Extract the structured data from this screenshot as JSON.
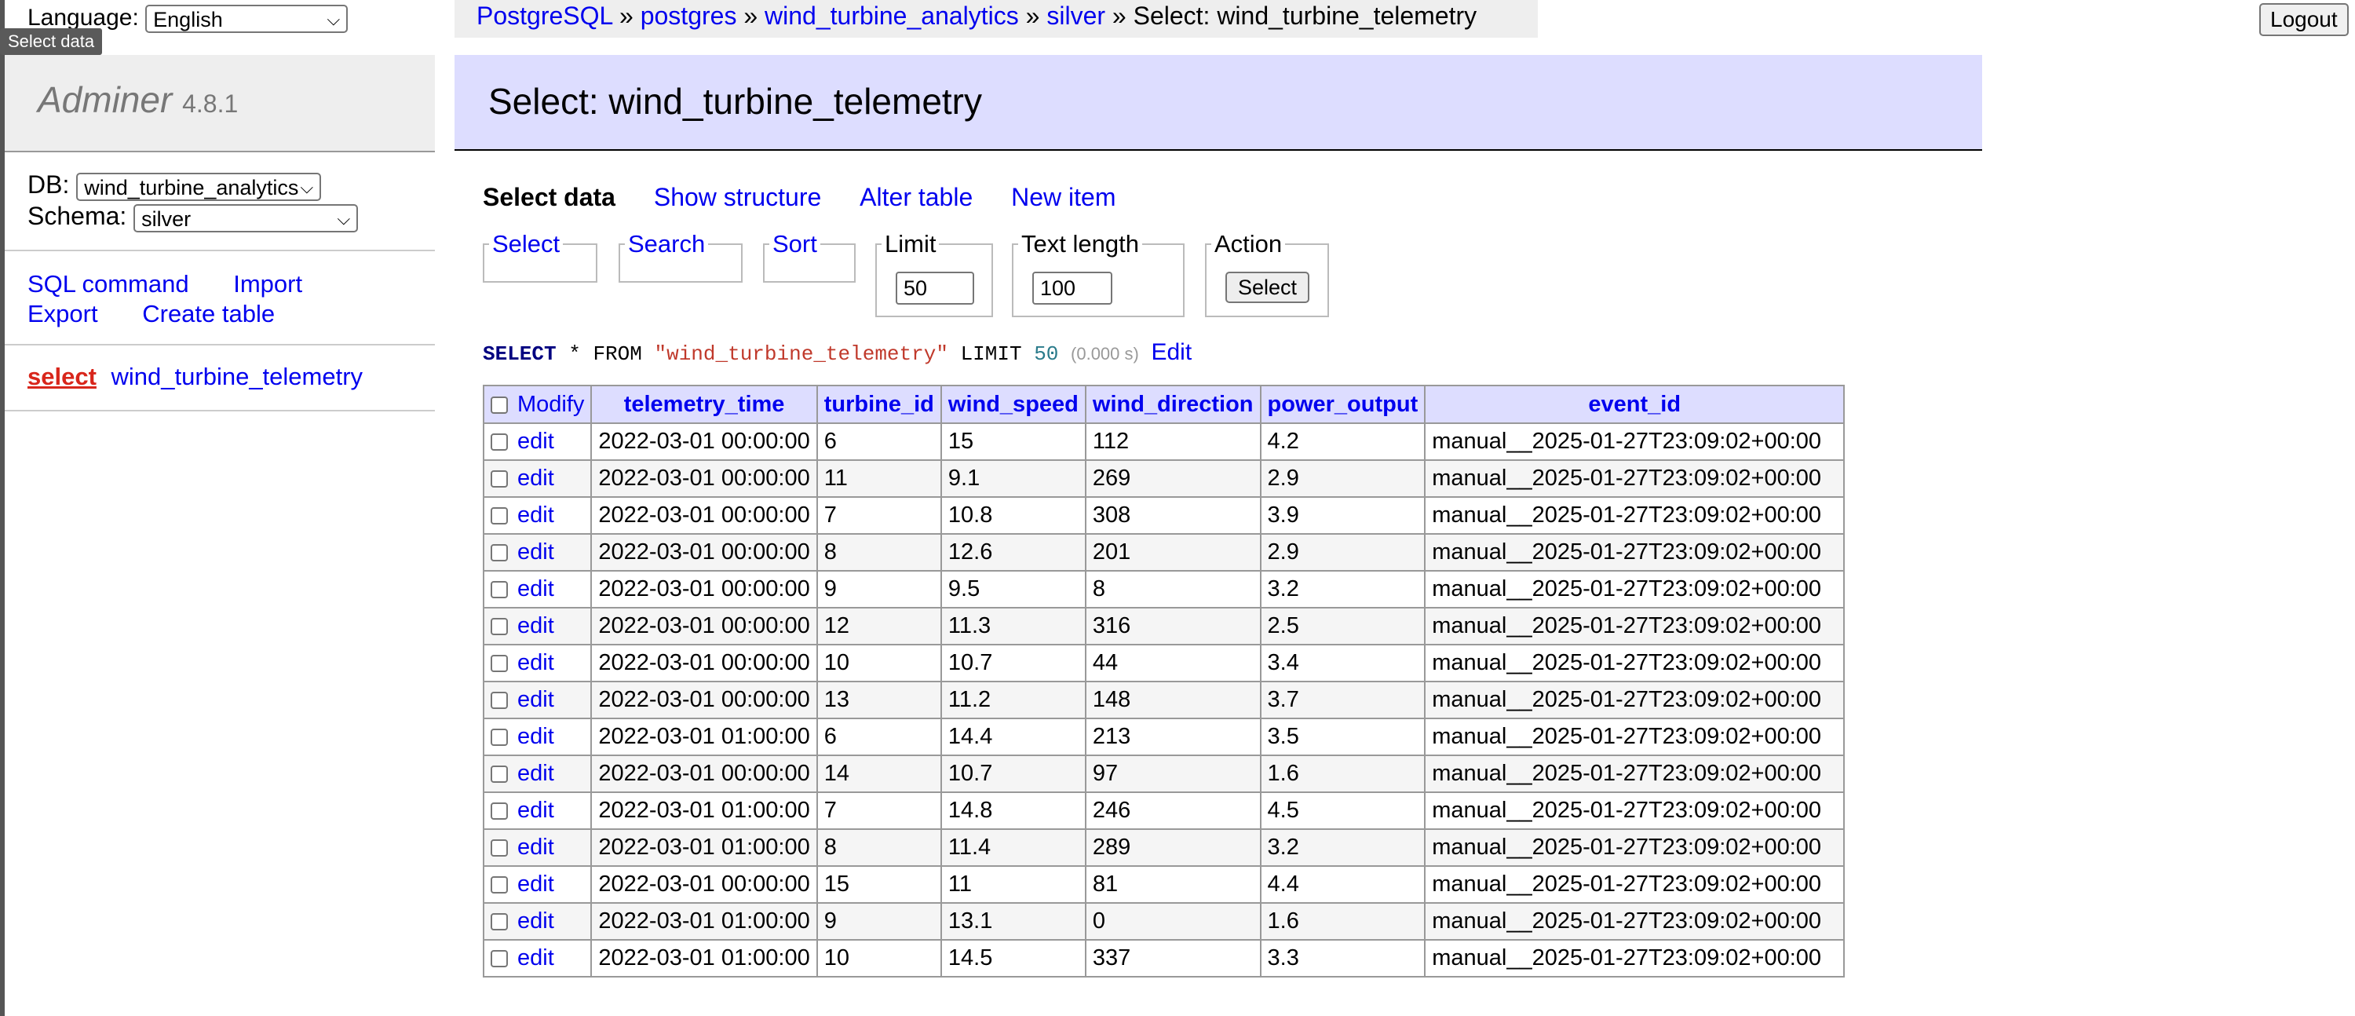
{
  "language": {
    "label": "Language:",
    "value": "English"
  },
  "tooltip": "Select data",
  "brand": {
    "name": "Adminer",
    "version": "4.8.1"
  },
  "db": {
    "label": "DB:",
    "value": "wind_turbine_analytics"
  },
  "schema": {
    "label": "Schema:",
    "value": "silver"
  },
  "sidebar_links": [
    "SQL command",
    "Import",
    "Export",
    "Create table"
  ],
  "table_entry": {
    "action": "select",
    "name": "wind_turbine_telemetry"
  },
  "breadcrumb": {
    "items": [
      "PostgreSQL",
      "postgres",
      "wind_turbine_analytics",
      "silver"
    ],
    "current": "Select: wind_turbine_telemetry",
    "sep": "»"
  },
  "logout": "Logout",
  "heading": "Select: wind_turbine_telemetry",
  "tabs": [
    "Select data",
    "Show structure",
    "Alter table",
    "New item"
  ],
  "fieldsets": {
    "select": "Select",
    "search": "Search",
    "sort": "Sort",
    "limit": {
      "legend": "Limit",
      "value": "50"
    },
    "text_length": {
      "legend": "Text length",
      "value": "100"
    },
    "action": {
      "legend": "Action",
      "button": "Select"
    }
  },
  "sql": {
    "select": "SELECT",
    "star": "*",
    "from": "FROM",
    "table": "\"wind_turbine_telemetry\"",
    "limit": "LIMIT",
    "n": "50",
    "time": "(0.000 s)",
    "edit": "Edit"
  },
  "table": {
    "modify": "Modify",
    "edit": "edit",
    "columns": [
      "telemetry_time",
      "turbine_id",
      "wind_speed",
      "wind_direction",
      "power_output",
      "event_id"
    ],
    "rows": [
      [
        "2022-03-01 00:00:00",
        "6",
        "15",
        "112",
        "4.2",
        "manual__2025-01-27T23:09:02+00:00"
      ],
      [
        "2022-03-01 00:00:00",
        "11",
        "9.1",
        "269",
        "2.9",
        "manual__2025-01-27T23:09:02+00:00"
      ],
      [
        "2022-03-01 00:00:00",
        "7",
        "10.8",
        "308",
        "3.9",
        "manual__2025-01-27T23:09:02+00:00"
      ],
      [
        "2022-03-01 00:00:00",
        "8",
        "12.6",
        "201",
        "2.9",
        "manual__2025-01-27T23:09:02+00:00"
      ],
      [
        "2022-03-01 00:00:00",
        "9",
        "9.5",
        "8",
        "3.2",
        "manual__2025-01-27T23:09:02+00:00"
      ],
      [
        "2022-03-01 00:00:00",
        "12",
        "11.3",
        "316",
        "2.5",
        "manual__2025-01-27T23:09:02+00:00"
      ],
      [
        "2022-03-01 00:00:00",
        "10",
        "10.7",
        "44",
        "3.4",
        "manual__2025-01-27T23:09:02+00:00"
      ],
      [
        "2022-03-01 00:00:00",
        "13",
        "11.2",
        "148",
        "3.7",
        "manual__2025-01-27T23:09:02+00:00"
      ],
      [
        "2022-03-01 01:00:00",
        "6",
        "14.4",
        "213",
        "3.5",
        "manual__2025-01-27T23:09:02+00:00"
      ],
      [
        "2022-03-01 00:00:00",
        "14",
        "10.7",
        "97",
        "1.6",
        "manual__2025-01-27T23:09:02+00:00"
      ],
      [
        "2022-03-01 01:00:00",
        "7",
        "14.8",
        "246",
        "4.5",
        "manual__2025-01-27T23:09:02+00:00"
      ],
      [
        "2022-03-01 01:00:00",
        "8",
        "11.4",
        "289",
        "3.2",
        "manual__2025-01-27T23:09:02+00:00"
      ],
      [
        "2022-03-01 00:00:00",
        "15",
        "11",
        "81",
        "4.4",
        "manual__2025-01-27T23:09:02+00:00"
      ],
      [
        "2022-03-01 01:00:00",
        "9",
        "13.1",
        "0",
        "1.6",
        "manual__2025-01-27T23:09:02+00:00"
      ],
      [
        "2022-03-01 01:00:00",
        "10",
        "14.5",
        "337",
        "3.3",
        "manual__2025-01-27T23:09:02+00:00"
      ]
    ]
  }
}
